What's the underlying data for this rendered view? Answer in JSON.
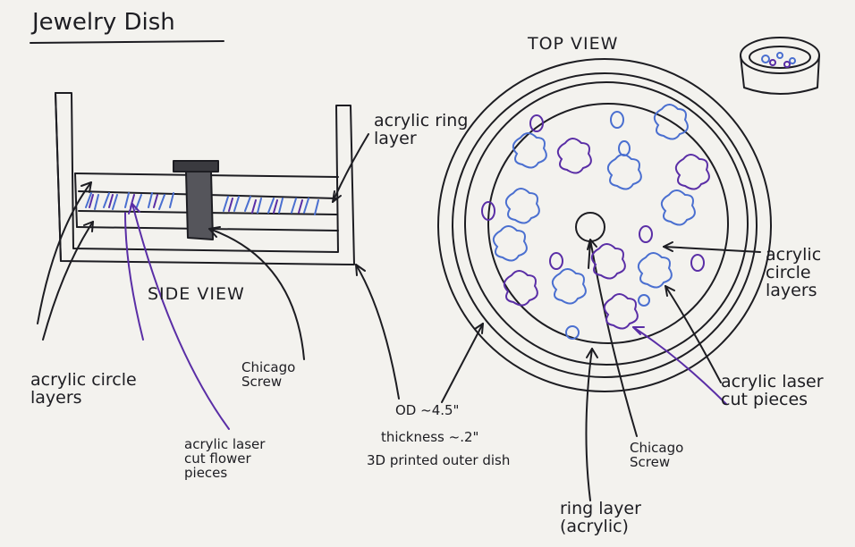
{
  "title": "Jewelry Dish",
  "side_view": {
    "heading": "SIDE VIEW",
    "label_ring_layer": "acrylic ring layer",
    "label_circle_layers": "acrylic circle layers",
    "label_flower_pieces": "acrylic laser cut flower pieces",
    "label_chicago_screw": "Chicago Screw",
    "label_outer_dish": [
      "OD ~4.5\"",
      "thickness ~.2\"",
      "3D printed outer dish"
    ]
  },
  "top_view": {
    "heading": "TOP VIEW",
    "label_circle_layers": "acrylic circle layers",
    "label_cut_pieces": "acrylic laser cut pieces",
    "label_chicago_screw": "Chicago Screw",
    "label_ring_layer": "ring layer (acrylic)"
  },
  "colors": {
    "ink": "#1d1d22",
    "blue": "#4a6fd0",
    "purple": "#5a2ea6",
    "paper": "#f3f2ee"
  }
}
